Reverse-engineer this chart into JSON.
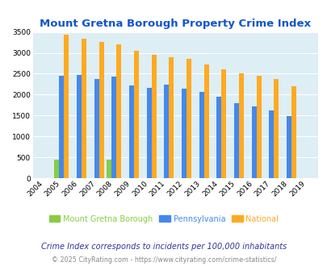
{
  "title": "Mount Gretna Borough Property Crime Index",
  "years": [
    2004,
    2005,
    2006,
    2007,
    2008,
    2009,
    2010,
    2011,
    2012,
    2013,
    2014,
    2015,
    2016,
    2017,
    2018,
    2019
  ],
  "mount_gretna": [
    0,
    450,
    0,
    0,
    450,
    0,
    0,
    0,
    0,
    0,
    0,
    0,
    0,
    0,
    0,
    0
  ],
  "pennsylvania": [
    0,
    2460,
    2470,
    2370,
    2430,
    2210,
    2170,
    2230,
    2150,
    2060,
    1940,
    1790,
    1710,
    1630,
    1490,
    0
  ],
  "national": [
    0,
    3430,
    3330,
    3270,
    3210,
    3040,
    2950,
    2900,
    2860,
    2730,
    2600,
    2500,
    2460,
    2380,
    2200,
    0
  ],
  "bar_width": 0.28,
  "group_width": 0.85,
  "color_mount_gretna": "#88cc44",
  "color_pennsylvania": "#4488ee",
  "color_national": "#ffaa22",
  "ylim": [
    0,
    3500
  ],
  "yticks": [
    0,
    500,
    1000,
    1500,
    2000,
    2500,
    3000,
    3500
  ],
  "bg_color": "#ddeef5",
  "title_color": "#1155cc",
  "legend_labels": [
    "Mount Gretna Borough",
    "Pennsylvania",
    "National"
  ],
  "footnote1": "Crime Index corresponds to incidents per 100,000 inhabitants",
  "footnote2": "© 2025 CityRating.com - https://www.cityrating.com/crime-statistics/",
  "footnote_color1": "#333399",
  "footnote_color2": "#888888"
}
